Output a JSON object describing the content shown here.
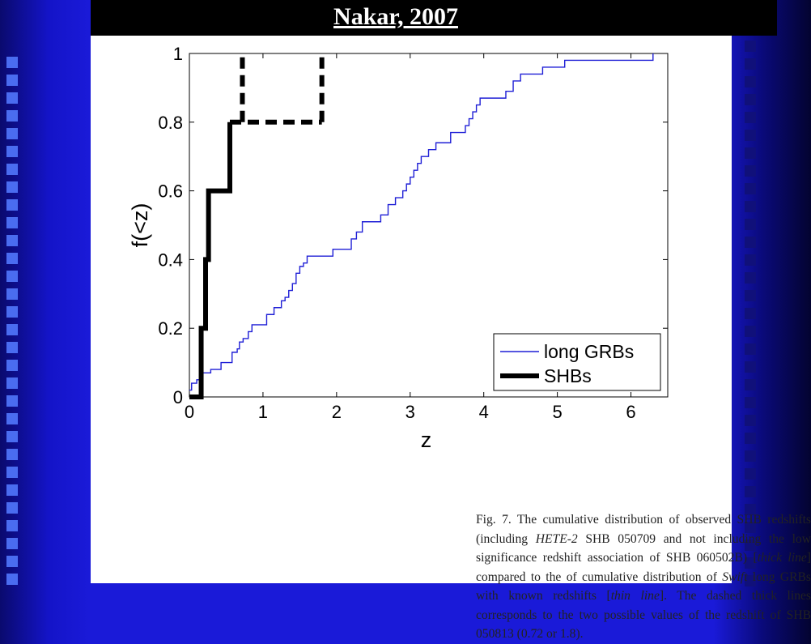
{
  "slide": {
    "title": "Nakar, 2007"
  },
  "caption": {
    "parts": [
      "Fig. 7.  The cumulative distribution of observed SHB redshifts (including ",
      "HETE-2",
      " SHB 050709 and not including the low significance redshift association of SHB 060502B) [",
      "thick line",
      "] compared to the of cumulative distribution of ",
      "Swift",
      " long GRBs with known redshifts [",
      "thin line",
      "]. The dashed thick lines corresponds to the two possible values of the redshift of SHB 050813 (0.72 or 1.8)."
    ]
  },
  "colors": {
    "long_grbs": "#1f1fd6",
    "shbs": "#000000"
  },
  "chart_data": {
    "type": "line",
    "title": "",
    "xlabel": "z",
    "ylabel": "f(<z)",
    "xlim": [
      0,
      6.5
    ],
    "ylim": [
      0,
      1
    ],
    "xticks": [
      "0",
      "1",
      "2",
      "3",
      "4",
      "5",
      "6"
    ],
    "yticks": [
      "0",
      "0.2",
      "0.4",
      "0.6",
      "0.8",
      "1"
    ],
    "xtick_values": [
      0,
      1,
      2,
      3,
      4,
      5,
      6
    ],
    "ytick_values": [
      0,
      0.2,
      0.4,
      0.6,
      0.8,
      1
    ],
    "grid": false,
    "legend_position": "bottom-right",
    "series": [
      {
        "name": "long GRBs",
        "style": "thin step",
        "x": [
          0,
          0.03,
          0.1,
          0.15,
          0.29,
          0.43,
          0.58,
          0.65,
          0.68,
          0.73,
          0.8,
          0.85,
          0.95,
          1.05,
          1.15,
          1.25,
          1.3,
          1.35,
          1.4,
          1.45,
          1.5,
          1.55,
          1.6,
          1.75,
          1.95,
          2.2,
          2.27,
          2.35,
          2.45,
          2.6,
          2.7,
          2.8,
          2.9,
          2.95,
          3.0,
          3.05,
          3.1,
          3.15,
          3.25,
          3.35,
          3.55,
          3.75,
          3.8,
          3.85,
          3.9,
          3.95,
          4.05,
          4.3,
          4.4,
          4.5,
          4.8,
          5.1,
          5.55,
          6.3
        ],
        "y": [
          0.02,
          0.04,
          0.05,
          0.07,
          0.08,
          0.1,
          0.13,
          0.14,
          0.16,
          0.17,
          0.19,
          0.21,
          0.21,
          0.24,
          0.26,
          0.28,
          0.29,
          0.31,
          0.33,
          0.36,
          0.38,
          0.39,
          0.41,
          0.41,
          0.43,
          0.46,
          0.48,
          0.51,
          0.51,
          0.53,
          0.56,
          0.58,
          0.6,
          0.62,
          0.64,
          0.66,
          0.68,
          0.7,
          0.72,
          0.74,
          0.77,
          0.79,
          0.81,
          0.83,
          0.85,
          0.87,
          0.87,
          0.89,
          0.92,
          0.94,
          0.96,
          0.98,
          0.98,
          1.0
        ]
      },
      {
        "name": "SHBs",
        "style": "thick step",
        "x": [
          0,
          0.16,
          0.22,
          0.26,
          0.55
        ],
        "y": [
          0.0,
          0.2,
          0.4,
          0.6,
          0.8
        ]
      },
      {
        "name": "SHB 050813 (0.72 or 1.8)",
        "style": "thick dashed",
        "x": [
          0.72,
          1.8
        ],
        "y": [
          0.8,
          0.8
        ]
      }
    ],
    "legend": [
      "long GRBs",
      "SHBs"
    ]
  }
}
